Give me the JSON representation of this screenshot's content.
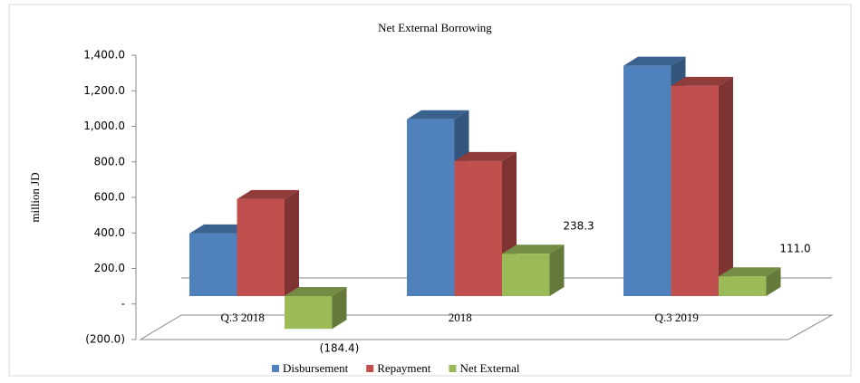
{
  "chart_data": {
    "type": "bar3d",
    "title": "Net External Borrowing",
    "y_label": "million JD",
    "categories": [
      "Q.3 2018",
      "2018",
      "Q.3 2019"
    ],
    "series": [
      {
        "name": "Disbursement",
        "color": "#4f81bd",
        "values": [
          352,
          995,
          1296
        ]
      },
      {
        "name": "Repayment",
        "color": "#c0504d",
        "values": [
          546,
          760,
          1183
        ]
      },
      {
        "name": "Net External",
        "color": "#9bbb59",
        "values": [
          -184.4,
          238.3,
          111.0
        ],
        "value_labels": [
          "(184.4)",
          "238.3",
          "111.0"
        ]
      }
    ],
    "ylim": [
      -200,
      1400
    ],
    "yticks": [
      {
        "value": -200,
        "label": "(200.0)"
      },
      {
        "value": 0,
        "label": "-"
      },
      {
        "value": 200,
        "label": "200.0"
      },
      {
        "value": 400,
        "label": "400.0"
      },
      {
        "value": 600,
        "label": "600.0"
      },
      {
        "value": 800,
        "label": "800.0"
      },
      {
        "value": 1000,
        "label": "1,000.0"
      },
      {
        "value": 1200,
        "label": "1,200.0"
      },
      {
        "value": 1400,
        "label": "1,400.0"
      }
    ],
    "legend": "bottom"
  }
}
